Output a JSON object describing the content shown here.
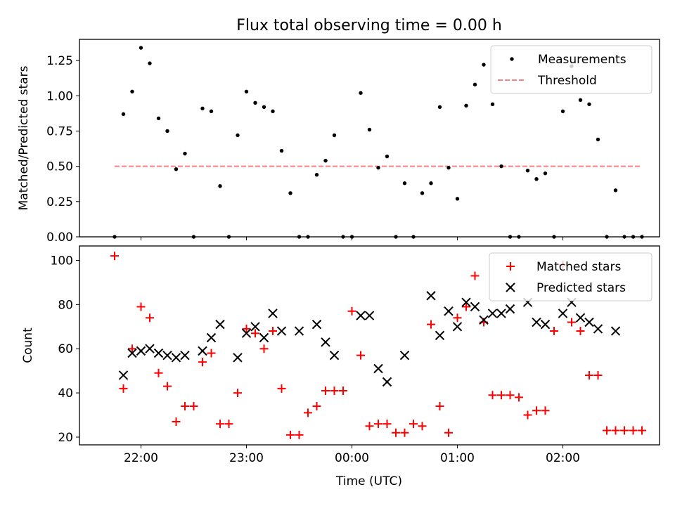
{
  "title": "Flux total observing time = 0.00 h",
  "chart_data": [
    {
      "type": "scatter",
      "panel": "top",
      "ylabel": "Matched/Predicted stars",
      "xlabel": "",
      "ylim": [
        0,
        1.4
      ],
      "xlim": [
        "21:25",
        "02:55"
      ],
      "yticks": [
        "0.00",
        "0.25",
        "0.50",
        "0.75",
        "1.00",
        "1.25"
      ],
      "legend": {
        "placement": "top-right",
        "entries": [
          "Measurements",
          "Threshold"
        ]
      },
      "series": [
        {
          "name": "Measurements",
          "color": "#000000",
          "marker": "dot",
          "x": [
            "21:45",
            "21:50",
            "21:55",
            "22:00",
            "22:05",
            "22:10",
            "22:15",
            "22:20",
            "22:25",
            "22:30",
            "22:35",
            "22:40",
            "22:45",
            "22:50",
            "22:55",
            "23:00",
            "23:05",
            "23:10",
            "23:15",
            "23:20",
            "23:25",
            "23:30",
            "23:35",
            "23:40",
            "23:45",
            "23:50",
            "23:55",
            "00:00",
            "00:05",
            "00:10",
            "00:15",
            "00:20",
            "00:25",
            "00:30",
            "00:35",
            "00:40",
            "00:45",
            "00:50",
            "00:55",
            "01:00",
            "01:05",
            "01:10",
            "01:15",
            "01:20",
            "01:25",
            "01:30",
            "01:35",
            "01:40",
            "01:45",
            "01:50",
            "01:55",
            "02:00",
            "02:05",
            "02:10",
            "02:15",
            "02:20",
            "02:25",
            "02:30",
            "02:35",
            "02:40",
            "02:45"
          ],
          "values": [
            0.0,
            0.87,
            1.03,
            1.34,
            1.23,
            0.84,
            0.75,
            0.48,
            0.59,
            0.0,
            0.91,
            0.89,
            0.36,
            0.0,
            0.72,
            1.03,
            0.95,
            0.92,
            0.89,
            0.61,
            0.31,
            0.0,
            0.0,
            0.44,
            0.54,
            0.72,
            0.0,
            0.0,
            1.02,
            0.76,
            0.49,
            0.57,
            0.0,
            0.38,
            0.0,
            0.31,
            0.38,
            0.92,
            0.49,
            0.27,
            0.93,
            1.08,
            1.22,
            0.94,
            0.5,
            0.0,
            0.0,
            0.47,
            0.41,
            0.45,
            0.0,
            0.89,
            1.21,
            0.97,
            0.94,
            0.69,
            0.0,
            0.33,
            0.0,
            0.0,
            0.0
          ]
        },
        {
          "name": "Threshold",
          "color": "#ff8080",
          "style": "dashed",
          "x": [
            "21:45",
            "02:45"
          ],
          "values": [
            0.5,
            0.5
          ]
        }
      ]
    },
    {
      "type": "scatter",
      "panel": "bottom",
      "ylabel": "Count",
      "xlabel": "Time (UTC)",
      "ylim": [
        16.5,
        106.5
      ],
      "xlim": [
        "21:25",
        "02:55"
      ],
      "yticks": [
        "20",
        "40",
        "60",
        "80",
        "100"
      ],
      "xticks": [
        "22:00",
        "23:00",
        "00:00",
        "01:00",
        "02:00"
      ],
      "legend": {
        "placement": "top-right",
        "entries": [
          "Matched stars",
          "Predicted stars"
        ]
      },
      "series": [
        {
          "name": "Matched stars",
          "color": "#ff0000",
          "marker": "plus",
          "x": [
            "21:45",
            "21:50",
            "21:55",
            "22:00",
            "22:05",
            "22:10",
            "22:15",
            "22:20",
            "22:25",
            "22:30",
            "22:35",
            "22:40",
            "22:45",
            "22:50",
            "22:55",
            "23:00",
            "23:05",
            "23:10",
            "23:15",
            "23:20",
            "23:25",
            "23:30",
            "23:35",
            "23:40",
            "23:45",
            "23:50",
            "23:55",
            "00:00",
            "00:05",
            "00:10",
            "00:15",
            "00:20",
            "00:25",
            "00:30",
            "00:35",
            "00:40",
            "00:45",
            "00:50",
            "00:55",
            "01:00",
            "01:05",
            "01:10",
            "01:15",
            "01:20",
            "01:25",
            "01:30",
            "01:35",
            "01:40",
            "01:45",
            "01:50",
            "01:55",
            "02:00",
            "02:05",
            "02:10",
            "02:15",
            "02:20",
            "02:25",
            "02:30",
            "02:35",
            "02:40",
            "02:45"
          ],
          "values": [
            102,
            42,
            60,
            79,
            74,
            49,
            43,
            27,
            34,
            34,
            54,
            58,
            26,
            26,
            40,
            69,
            67,
            60,
            68,
            42,
            21,
            21,
            31,
            34,
            41,
            41,
            41,
            77,
            57,
            25,
            26,
            26,
            22,
            22,
            26,
            25,
            71,
            34,
            22,
            74,
            79,
            93,
            72,
            39,
            39,
            39,
            38,
            30,
            32,
            32,
            68,
            98,
            72,
            68,
            48,
            48,
            23,
            23,
            23,
            23,
            23
          ]
        },
        {
          "name": "Predicted stars",
          "color": "#000000",
          "marker": "x",
          "x": [
            "21:50",
            "21:55",
            "22:00",
            "22:05",
            "22:10",
            "22:15",
            "22:20",
            "22:25",
            "22:35",
            "22:40",
            "22:45",
            "22:55",
            "23:00",
            "23:05",
            "23:10",
            "23:15",
            "23:20",
            "23:30",
            "23:40",
            "23:45",
            "23:50",
            "00:05",
            "00:10",
            "00:15",
            "00:20",
            "00:30",
            "00:45",
            "00:50",
            "00:55",
            "01:00",
            "01:05",
            "01:10",
            "01:15",
            "01:20",
            "01:25",
            "01:30",
            "01:40",
            "01:45",
            "01:50",
            "02:00",
            "02:05",
            "02:10",
            "02:15",
            "02:20",
            "02:30"
          ],
          "values": [
            48,
            58,
            59,
            60,
            58,
            57,
            56,
            57,
            59,
            65,
            71,
            56,
            67,
            70,
            65,
            76,
            68,
            68,
            71,
            63,
            57,
            75,
            75,
            51,
            45,
            57,
            84,
            66,
            77,
            70,
            81,
            79,
            73,
            76,
            76,
            78,
            81,
            72,
            71,
            76,
            81,
            74,
            72,
            69,
            68
          ]
        }
      ]
    }
  ]
}
